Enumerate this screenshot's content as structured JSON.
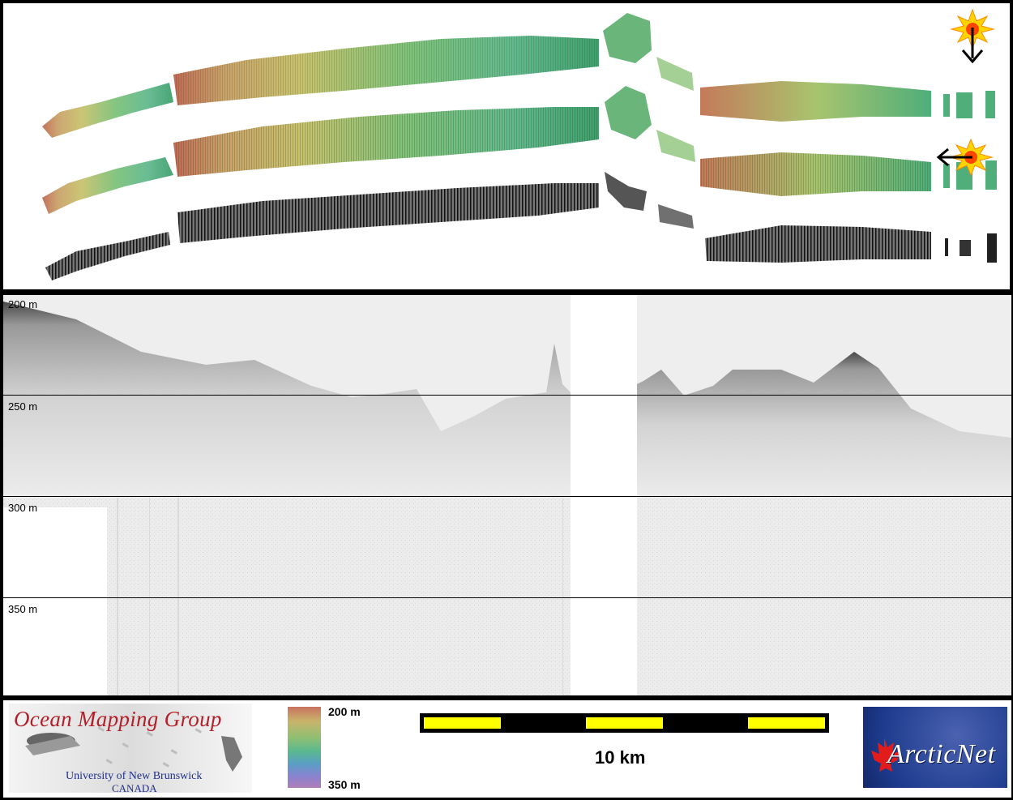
{
  "profile": {
    "depth_labels": [
      "200 m",
      "250 m",
      "300 m",
      "350 m"
    ]
  },
  "legend": {
    "colorbar_top": "200 m",
    "colorbar_bottom": "350 m"
  },
  "scale": {
    "label": "10 km"
  },
  "logos": {
    "omg_title": "Ocean Mapping Group",
    "omg_sub1": "University of New Brunswick",
    "omg_sub2": "CANADA",
    "arcticnet": "ArcticNet"
  },
  "icons": {
    "sun_light_1": "sun-illumination-icon",
    "arrow_down": "arrow-down-icon",
    "sun_light_2": "sun-illumination-icon",
    "arrow_left": "arrow-left-icon"
  },
  "colors": {
    "scale_yellow": "#ffff00",
    "omg_red": "#b4202a",
    "arctic_blue": "#1d3a8c"
  }
}
